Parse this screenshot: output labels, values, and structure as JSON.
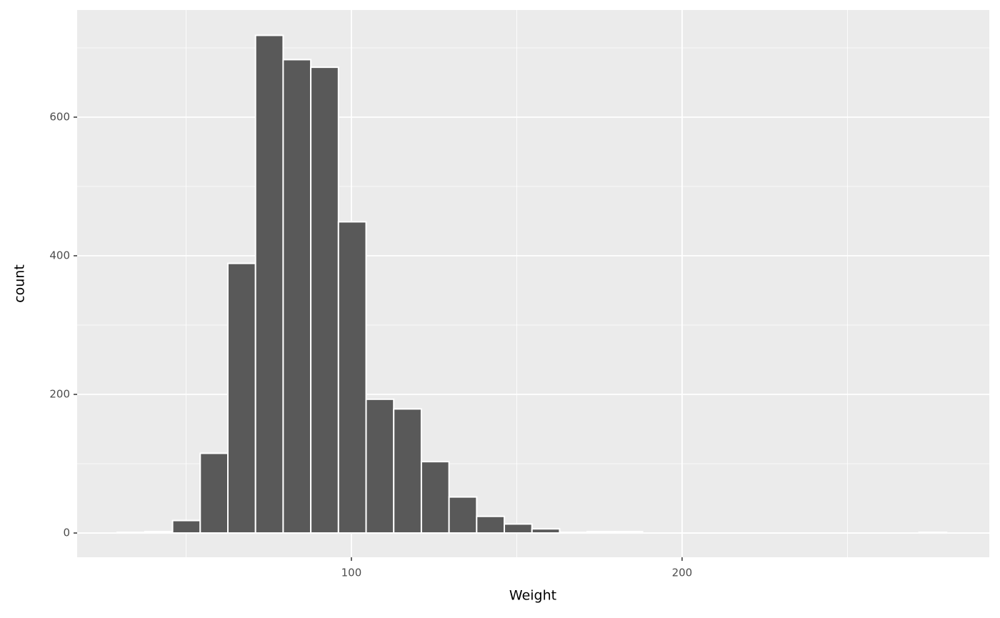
{
  "chart_data": {
    "type": "histogram",
    "x_label": "Weight",
    "y_label": "count",
    "bins": [
      29.2,
      37.56,
      45.92,
      54.28,
      62.64,
      71.0,
      79.36,
      87.72,
      96.08,
      104.44,
      112.8,
      121.16,
      129.52,
      137.88,
      146.24,
      154.6,
      162.96,
      171.32,
      179.68,
      188.04,
      196.4,
      204.76,
      213.12,
      221.48,
      229.84,
      238.2,
      246.56,
      254.92,
      263.28,
      271.64,
      280.0
    ],
    "counts": [
      1,
      2,
      18,
      115,
      389,
      718,
      683,
      672,
      449,
      193,
      179,
      103,
      52,
      24,
      13,
      6,
      1,
      2,
      2,
      0,
      0,
      0,
      0,
      0,
      0,
      0,
      0,
      0,
      0,
      1
    ],
    "color": "#595959",
    "xlim": [
      17.06,
      292.9
    ],
    "xticks": [
      100,
      200
    ],
    "xminor": [
      50,
      150,
      250
    ],
    "ylim": [
      -35,
      754.6
    ],
    "yticks": [
      0,
      200,
      400,
      600
    ],
    "yminor": [
      100,
      300,
      500,
      700
    ],
    "grid": true
  }
}
